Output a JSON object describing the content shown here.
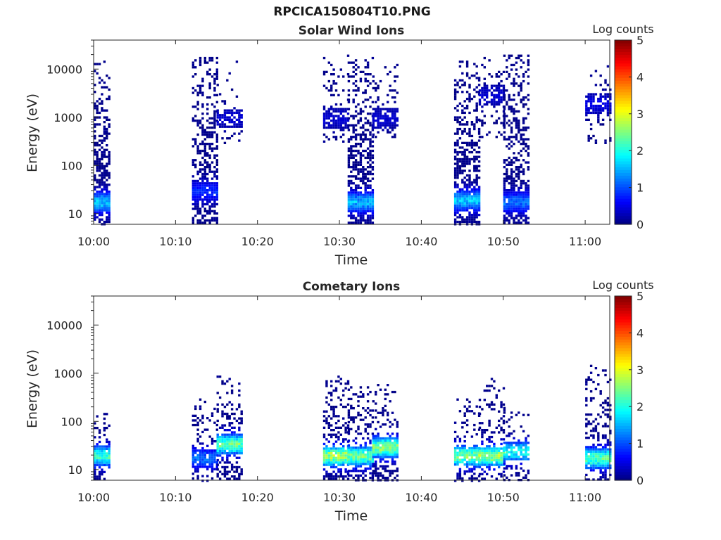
{
  "figure_title": "RPCICA150804T10.PNG",
  "colormap": [
    "#00007f",
    "#0000ff",
    "#007fff",
    "#00ffff",
    "#7fff7f",
    "#ffff00",
    "#ff7f00",
    "#ff0000",
    "#7f0000"
  ],
  "chart_data": [
    {
      "type": "heatmap",
      "title": "Solar Wind Ions",
      "xlabel": "Time",
      "ylabel": "Energy (eV)",
      "xlim": [
        "10:00",
        "11:03"
      ],
      "ylim": [
        6,
        40000
      ],
      "y_scale": "log",
      "x_tick_labels": [
        "10:00",
        "10:10",
        "10:20",
        "10:30",
        "10:40",
        "10:50",
        "11:00"
      ],
      "y_tick_labels": [
        "10",
        "100",
        "1000",
        "10000"
      ],
      "colorbar": {
        "label": "Log counts",
        "range": [
          0,
          5
        ],
        "tick_labels": [
          "0",
          "1",
          "2",
          "3",
          "4",
          "5"
        ]
      },
      "grid": false,
      "bursts": [
        {
          "start": "10:00",
          "end": "10:02",
          "e_low": 6,
          "e_high": 15000,
          "density": 0.55,
          "peak_energy": 18,
          "peak_log_counts": 1.8
        },
        {
          "start": "10:12",
          "end": "10:15",
          "e_low": 6,
          "e_high": 20000,
          "density": 0.55,
          "peak_energy": 30,
          "peak_log_counts": 0.9
        },
        {
          "start": "10:15",
          "end": "10:18",
          "e_low": 300,
          "e_high": 15000,
          "density": 0.12,
          "peak_energy": 1000,
          "peak_log_counts": 0.4
        },
        {
          "start": "10:28",
          "end": "10:31",
          "e_low": 300,
          "e_high": 20000,
          "density": 0.2,
          "peak_energy": 1000,
          "peak_log_counts": 0.4
        },
        {
          "start": "10:31",
          "end": "10:34",
          "e_low": 6,
          "e_high": 20000,
          "density": 0.6,
          "peak_energy": 18,
          "peak_log_counts": 1.7
        },
        {
          "start": "10:34",
          "end": "10:37",
          "e_low": 400,
          "e_high": 20000,
          "density": 0.2,
          "peak_energy": 1000,
          "peak_log_counts": 0.4
        },
        {
          "start": "10:44",
          "end": "10:47",
          "e_low": 6,
          "e_high": 15000,
          "density": 0.6,
          "peak_energy": 20,
          "peak_log_counts": 1.8
        },
        {
          "start": "10:47",
          "end": "10:50",
          "e_low": 400,
          "e_high": 20000,
          "density": 0.2,
          "peak_energy": 3000,
          "peak_log_counts": 0.4
        },
        {
          "start": "10:50",
          "end": "10:53",
          "e_low": 6,
          "e_high": 20000,
          "density": 0.55,
          "peak_energy": 18,
          "peak_log_counts": 1.3
        },
        {
          "start": "11:00",
          "end": "11:03",
          "e_low": 300,
          "e_high": 15000,
          "density": 0.2,
          "peak_energy": 2000,
          "peak_log_counts": 0.5
        }
      ]
    },
    {
      "type": "heatmap",
      "title": "Cometary Ions",
      "xlabel": "Time",
      "ylabel": "Energy (eV)",
      "xlim": [
        "10:00",
        "11:03"
      ],
      "ylim": [
        6,
        40000
      ],
      "y_scale": "log",
      "x_tick_labels": [
        "10:00",
        "10:10",
        "10:20",
        "10:30",
        "10:40",
        "10:50",
        "11:00"
      ],
      "y_tick_labels": [
        "10",
        "100",
        "1000",
        "10000"
      ],
      "colorbar": {
        "label": "Log counts",
        "range": [
          0,
          5
        ],
        "tick_labels": [
          "0",
          "1",
          "2",
          "3",
          "4",
          "5"
        ]
      },
      "grid": false,
      "bursts": [
        {
          "start": "10:00",
          "end": "10:02",
          "e_low": 6,
          "e_high": 150,
          "density": 0.45,
          "peak_energy": 20,
          "peak_log_counts": 2.4
        },
        {
          "start": "10:12",
          "end": "10:15",
          "e_low": 6,
          "e_high": 300,
          "density": 0.3,
          "peak_energy": 18,
          "peak_log_counts": 1.3
        },
        {
          "start": "10:15",
          "end": "10:18",
          "e_low": 6,
          "e_high": 1000,
          "density": 0.4,
          "peak_energy": 35,
          "peak_log_counts": 2.7
        },
        {
          "start": "10:28",
          "end": "10:31",
          "e_low": 6,
          "e_high": 1000,
          "density": 0.4,
          "peak_energy": 20,
          "peak_log_counts": 3.1
        },
        {
          "start": "10:31",
          "end": "10:34",
          "e_low": 6,
          "e_high": 600,
          "density": 0.4,
          "peak_energy": 20,
          "peak_log_counts": 2.7
        },
        {
          "start": "10:34",
          "end": "10:37",
          "e_low": 6,
          "e_high": 600,
          "density": 0.4,
          "peak_energy": 30,
          "peak_log_counts": 2.9
        },
        {
          "start": "10:44",
          "end": "10:47",
          "e_low": 6,
          "e_high": 300,
          "density": 0.3,
          "peak_energy": 20,
          "peak_log_counts": 2.8
        },
        {
          "start": "10:47",
          "end": "10:50",
          "e_low": 6,
          "e_high": 800,
          "density": 0.35,
          "peak_energy": 20,
          "peak_log_counts": 3
        },
        {
          "start": "10:50",
          "end": "10:53",
          "e_low": 6,
          "e_high": 200,
          "density": 0.3,
          "peak_energy": 25,
          "peak_log_counts": 2.2
        },
        {
          "start": "11:00",
          "end": "11:03",
          "e_low": 6,
          "e_high": 1500,
          "density": 0.35,
          "peak_energy": 18,
          "peak_log_counts": 2.6
        }
      ]
    }
  ]
}
